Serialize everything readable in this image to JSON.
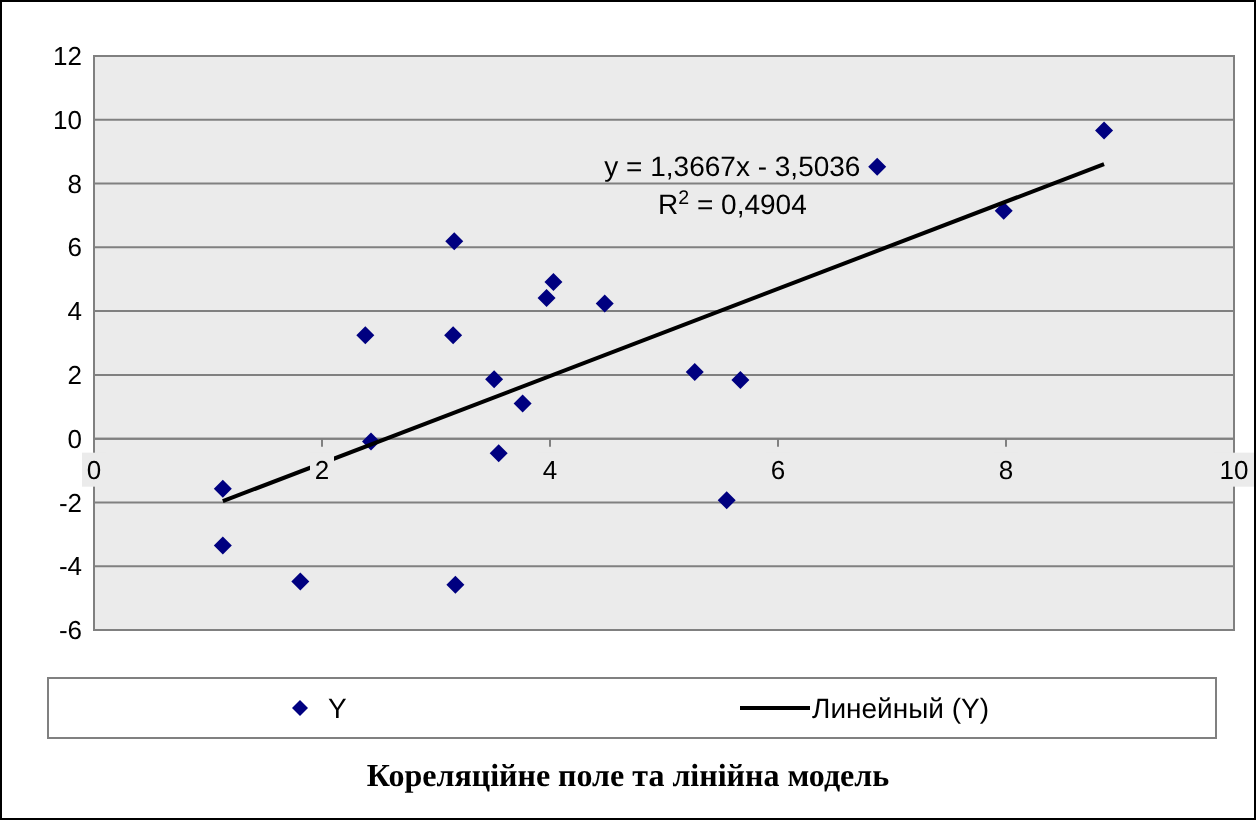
{
  "chart_data": {
    "type": "scatter",
    "title": "Кореляційне поле та лінійна модель",
    "xlim": [
      0,
      10
    ],
    "ylim": [
      -6,
      12
    ],
    "xticks": [
      0,
      2,
      4,
      6,
      8,
      10
    ],
    "yticks": [
      -6,
      -4,
      -2,
      0,
      2,
      4,
      6,
      8,
      10,
      12
    ],
    "grid": "y",
    "legend": "bottom",
    "series": [
      {
        "name": "Y",
        "color": "#000080",
        "marker": "diamond",
        "x": [
          1.13,
          1.13,
          1.81,
          2.38,
          2.43,
          3.16,
          3.15,
          3.17,
          3.51,
          3.55,
          3.76,
          3.97,
          4.03,
          4.48,
          5.27,
          5.67,
          5.55,
          6.87,
          7.98,
          8.86
        ],
        "values": [
          -1.57,
          -3.35,
          -4.48,
          3.24,
          -0.09,
          6.19,
          3.24,
          -4.58,
          1.86,
          -0.46,
          1.1,
          4.41,
          4.91,
          4.24,
          2.09,
          1.84,
          -1.93,
          8.53,
          7.15,
          9.66
        ]
      },
      {
        "name": "Линейный (Y)",
        "type": "line",
        "color": "#000000",
        "marker": "none",
        "line_style": "solid",
        "x": [
          1.13,
          8.86
        ],
        "values": [
          -1.96,
          8.61
        ]
      }
    ],
    "annotations": [
      "y = 1,3667x - 3,5036",
      "R$^{2}$ = 0,4904"
    ]
  }
}
